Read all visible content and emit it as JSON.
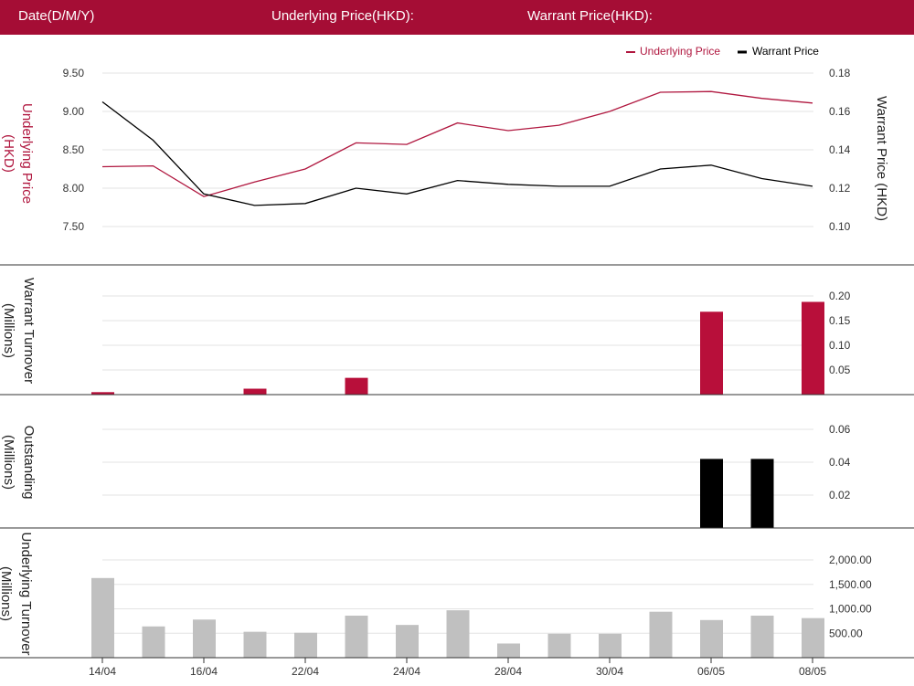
{
  "header": {
    "date_label": "Date(D/M/Y)",
    "underlying_label": "Underlying Price(HKD):",
    "warrant_label": "Warrant Price(HKD):"
  },
  "colors": {
    "underlying": "#b0173f",
    "warrant": "#000000",
    "turnover_bar": "#b80f3a",
    "outstanding_bar": "#000000",
    "underlying_turnover_bar": "#c0c0c0",
    "header_bg": "#a50d35"
  },
  "chart_data": [
    {
      "type": "line",
      "legend": [
        "Underlying Price",
        "Warrant Price"
      ],
      "legend_position": "top-right",
      "y_left": {
        "label": "Underlying Price (HKD)",
        "range": [
          7.5,
          9.5
        ],
        "ticks": [
          "9.50",
          "9.00",
          "8.50",
          "8.00",
          "7.50"
        ],
        "tick_values": [
          9.5,
          9.0,
          8.5,
          8.0,
          7.5
        ]
      },
      "y_right": {
        "label": "Warrant Price (HKD)",
        "range": [
          0.1,
          0.18
        ],
        "ticks": [
          "0.18",
          "0.16",
          "0.14",
          "0.12",
          "0.10"
        ],
        "tick_values": [
          0.18,
          0.16,
          0.14,
          0.12,
          0.1
        ]
      },
      "series": [
        {
          "name": "Underlying Price",
          "axis": "left",
          "values": [
            8.28,
            8.29,
            7.89,
            8.08,
            8.25,
            8.59,
            8.57,
            8.85,
            8.75,
            8.82,
            9.0,
            9.25,
            9.26,
            9.17,
            9.11
          ]
        },
        {
          "name": "Warrant Price",
          "axis": "right",
          "values": [
            0.165,
            0.145,
            0.117,
            0.111,
            0.112,
            0.12,
            0.117,
            0.124,
            0.122,
            0.121,
            0.121,
            0.13,
            0.132,
            0.125,
            0.121
          ]
        }
      ],
      "grid": true
    },
    {
      "type": "bar",
      "ylabel": "Warrant Turnover (Millions)",
      "ticks": [
        "0.20",
        "0.15",
        "0.10",
        "0.05"
      ],
      "tick_values": [
        0.2,
        0.15,
        0.1,
        0.05
      ],
      "ylim": [
        0,
        0.2
      ],
      "values": [
        0.005,
        0,
        0,
        0.012,
        0,
        0.034,
        0,
        0,
        0,
        0,
        0,
        0,
        0.168,
        0,
        0.188
      ]
    },
    {
      "type": "bar",
      "ylabel": "Outstanding (Millions)",
      "ticks": [
        "0.06",
        "0.04",
        "0.02"
      ],
      "tick_values": [
        0.06,
        0.04,
        0.02
      ],
      "ylim": [
        0,
        0.06
      ],
      "values": [
        0,
        0,
        0,
        0,
        0,
        0,
        0,
        0,
        0,
        0,
        0,
        0,
        0.042,
        0.042,
        0
      ]
    },
    {
      "type": "bar",
      "ylabel": "Underlying Turnover (Millions)",
      "ticks": [
        "2,000.00",
        "1,500.00",
        "1,000.00",
        "500.00"
      ],
      "tick_values": [
        2000,
        1500,
        1000,
        500
      ],
      "ylim": [
        0,
        2000
      ],
      "values": [
        1630,
        640,
        780,
        530,
        510,
        860,
        670,
        970,
        290,
        490,
        490,
        940,
        770,
        860,
        810
      ]
    }
  ],
  "x_axis": {
    "ticks": [
      "14/04",
      "16/04",
      "22/04",
      "24/04",
      "28/04",
      "30/04",
      "06/05",
      "08/05"
    ],
    "tick_indices": [
      0,
      2,
      4,
      6,
      8,
      10,
      12,
      14
    ]
  }
}
